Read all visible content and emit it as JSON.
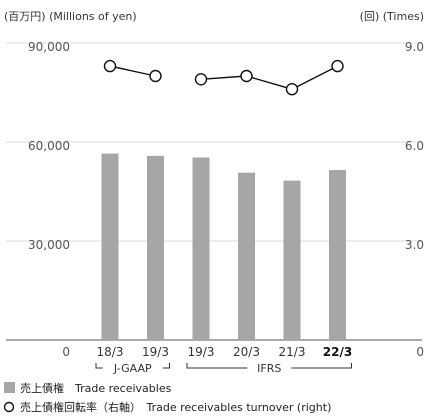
{
  "chart_data": {
    "type": "bar",
    "units": {
      "left": "(百万円) (Millions of yen)",
      "right": "(回) (Times)"
    },
    "categories": [
      "18/3",
      "19/3",
      "19/3",
      "20/3",
      "21/3",
      "22/3"
    ],
    "highlight_category_index": 5,
    "y_left": {
      "ticks": [
        "0",
        "30,000",
        "60,000",
        "90,000"
      ],
      "tick_values": [
        0,
        30000,
        60000,
        90000
      ],
      "lim": [
        0,
        90000
      ]
    },
    "y_right": {
      "ticks": [
        "0",
        "3.0",
        "6.0",
        "9.0"
      ],
      "tick_values": [
        0,
        3,
        6,
        9
      ],
      "lim": [
        0,
        9
      ]
    },
    "series": [
      {
        "name": "売上債権　Trade receivables",
        "type": "bar",
        "axis": "left",
        "color": "#a6a6a6",
        "values": [
          56500,
          55800,
          55300,
          50700,
          48300,
          51500
        ]
      },
      {
        "name": "売上債権回転率（右軸）　Trade receivables turnover (right)",
        "type": "line",
        "axis": "right",
        "color": "#111111",
        "values": [
          8.3,
          8.0,
          7.9,
          8.0,
          7.6,
          8.3
        ],
        "segments": [
          [
            0,
            1
          ],
          [
            2,
            5
          ]
        ]
      }
    ],
    "standards": [
      {
        "label": "J-GAAP",
        "from": 0,
        "to": 1
      },
      {
        "label": "IFRS",
        "from": 2,
        "to": 5
      }
    ],
    "grid": true,
    "legend_position": "bottom-left"
  }
}
